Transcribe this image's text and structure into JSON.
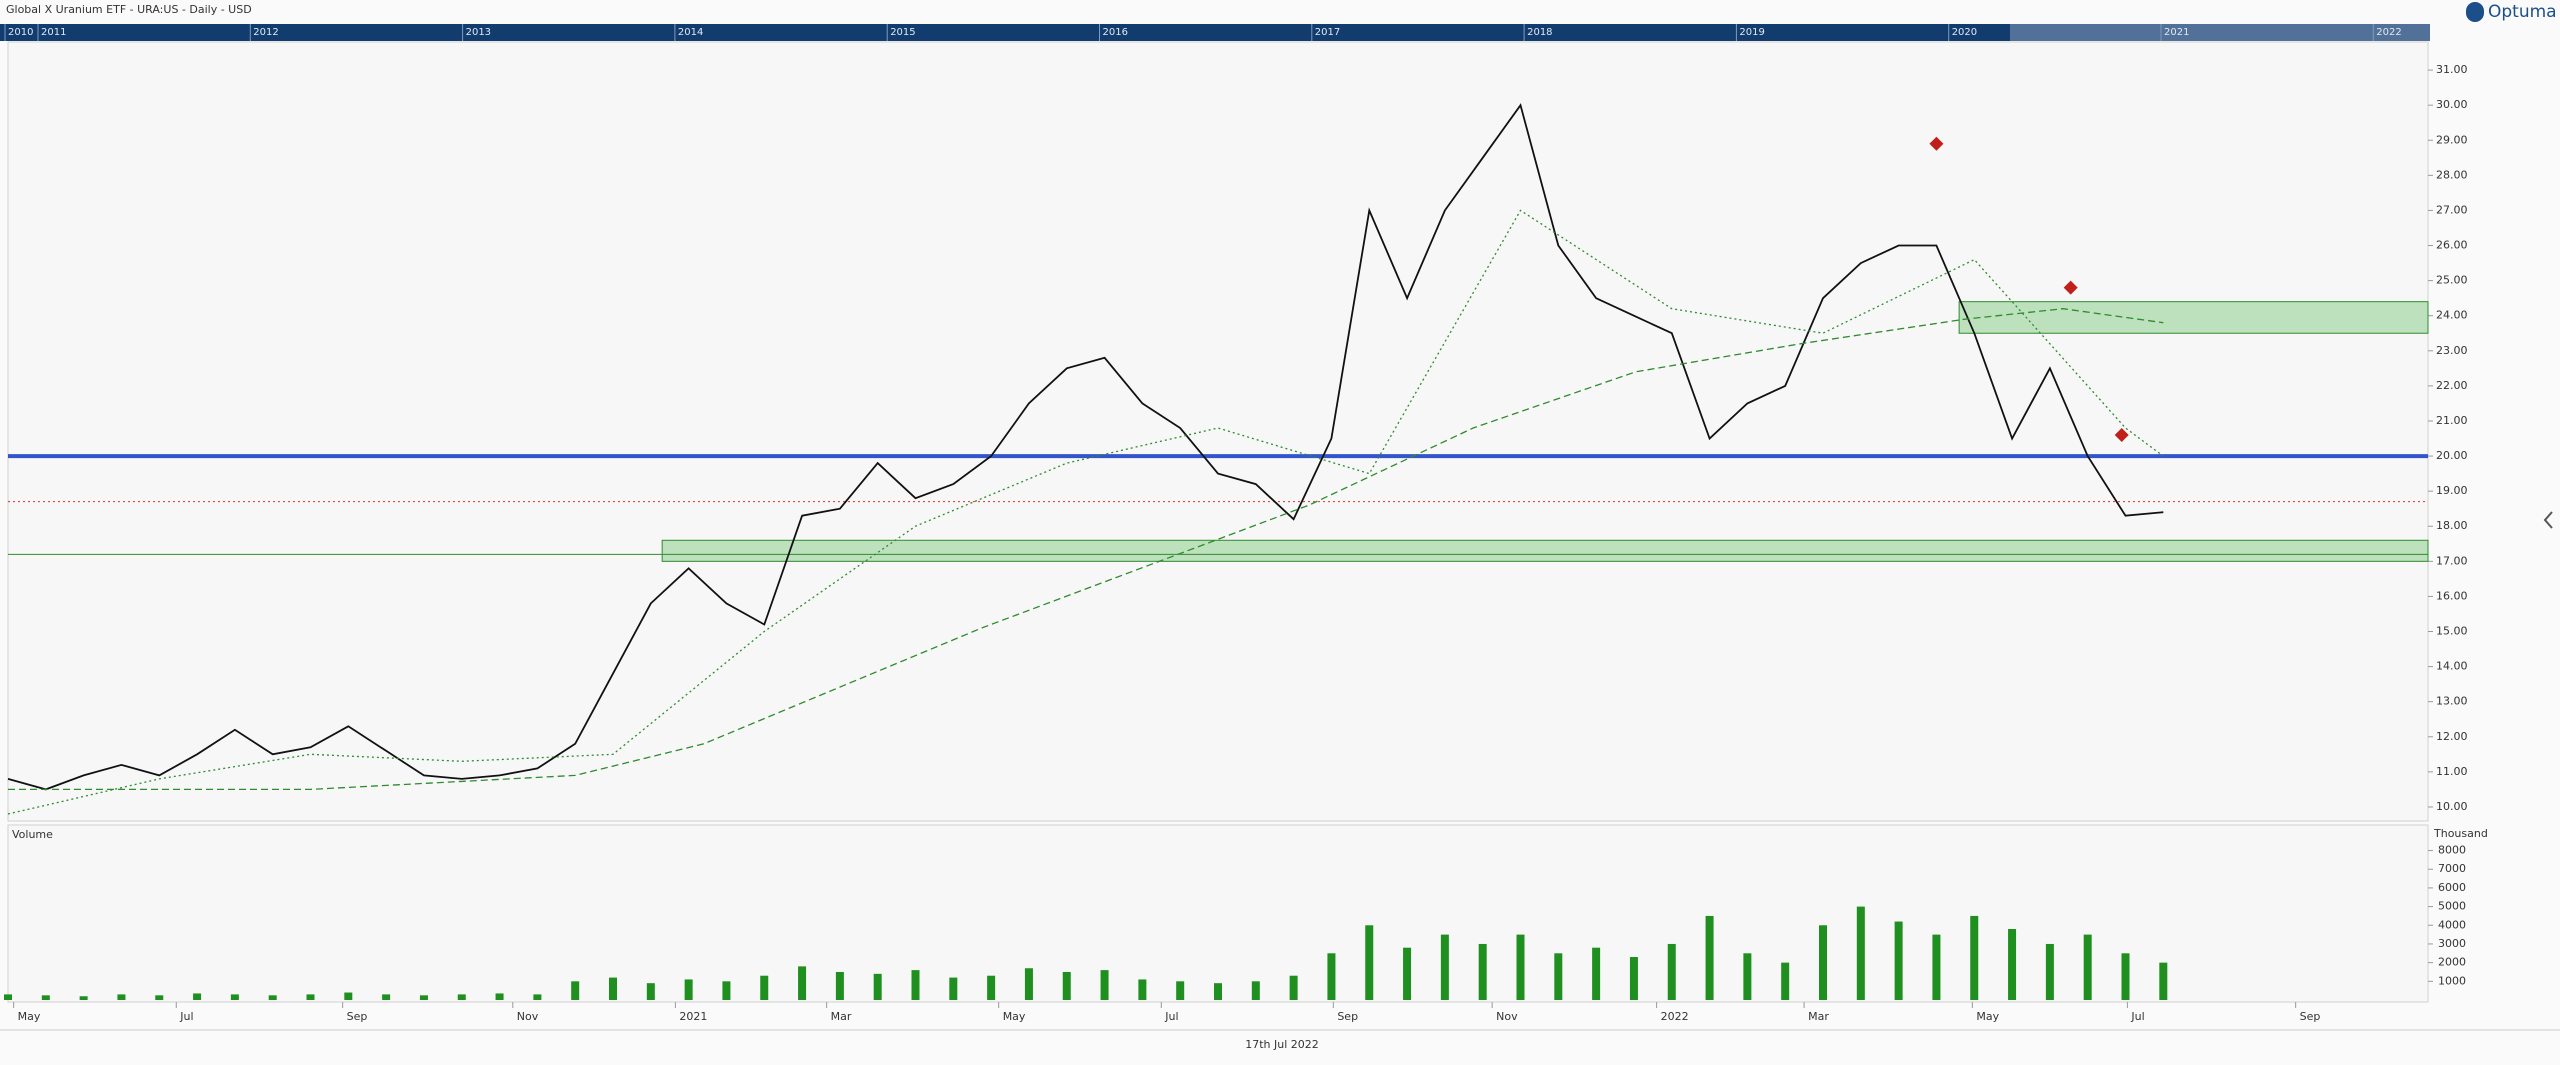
{
  "header": {
    "title": "Global X Uranium ETF - URA:US - Daily - USD",
    "logo": "Optuma",
    "footer_date": "17th Jul 2022"
  },
  "navigator": {
    "years": [
      "2010",
      "2011",
      "2012",
      "2013",
      "2014",
      "2015",
      "2016",
      "2017",
      "2018",
      "2019",
      "2020",
      "2021",
      "2022"
    ]
  },
  "chart_data": [
    {
      "type": "line",
      "xlim": [
        0,
        128
      ],
      "xticks": [
        {
          "value": 0.3,
          "label": "May"
        },
        {
          "value": 8.9,
          "label": "Jul"
        },
        {
          "value": 17.7,
          "label": "Sep"
        },
        {
          "value": 26.7,
          "label": "Nov"
        },
        {
          "value": 35.3,
          "label": "2021"
        },
        {
          "value": 43.3,
          "label": "Mar"
        },
        {
          "value": 52.4,
          "label": "May"
        },
        {
          "value": 61,
          "label": "Jul"
        },
        {
          "value": 70.1,
          "label": "Sep"
        },
        {
          "value": 78.5,
          "label": "Nov"
        },
        {
          "value": 87.2,
          "label": "2022"
        },
        {
          "value": 95,
          "label": "Mar"
        },
        {
          "value": 103.9,
          "label": "May"
        },
        {
          "value": 112.1,
          "label": "Jul"
        },
        {
          "value": 121,
          "label": "Sep"
        }
      ],
      "ylim": [
        9.6,
        31.8
      ],
      "yticks": [
        {
          "value": 10,
          "label": "10.00"
        },
        {
          "value": 11,
          "label": "11.00"
        },
        {
          "value": 12,
          "label": "12.00"
        },
        {
          "value": 13,
          "label": "13.00"
        },
        {
          "value": 14,
          "label": "14.00"
        },
        {
          "value": 15,
          "label": "15.00"
        },
        {
          "value": 16,
          "label": "16.00"
        },
        {
          "value": 17,
          "label": "17.00"
        },
        {
          "value": 18,
          "label": "18.00"
        },
        {
          "value": 19,
          "label": "19.00"
        },
        {
          "value": 20,
          "label": "20.00"
        },
        {
          "value": 21,
          "label": "21.00"
        },
        {
          "value": 22,
          "label": "22.00"
        },
        {
          "value": 23,
          "label": "23.00"
        },
        {
          "value": 24,
          "label": "24.00"
        },
        {
          "value": 25,
          "label": "25.00"
        },
        {
          "value": 26,
          "label": "26.00"
        },
        {
          "value": 27,
          "label": "27.00"
        },
        {
          "value": 28,
          "label": "28.00"
        },
        {
          "value": 29,
          "label": "29.00"
        },
        {
          "value": 30,
          "label": "30.00"
        },
        {
          "value": 31,
          "label": "31.00"
        }
      ],
      "series": [
        {
          "color": "#111111",
          "style": "solid",
          "x": [
            0,
            2,
            4,
            6,
            8,
            10,
            12,
            14,
            16,
            18,
            20,
            22,
            24,
            26,
            28,
            30,
            32,
            34,
            36,
            38,
            40,
            42,
            44,
            46,
            48,
            50,
            52,
            54,
            56,
            58,
            60,
            62,
            64,
            66,
            68,
            70,
            72,
            74,
            76,
            78,
            80,
            82,
            84,
            86,
            88,
            90,
            92,
            94,
            96,
            98,
            100,
            102,
            104,
            106,
            108,
            110,
            112,
            114
          ],
          "values": [
            10.8,
            10.5,
            10.9,
            11.2,
            10.9,
            11.5,
            12.2,
            11.5,
            11.7,
            12.3,
            11.6,
            10.9,
            10.8,
            10.9,
            11.1,
            11.8,
            13.8,
            15.8,
            16.8,
            15.8,
            15.2,
            18.3,
            18.5,
            19.8,
            18.8,
            19.2,
            20.0,
            21.5,
            22.5,
            22.8,
            21.5,
            20.8,
            19.5,
            19.2,
            18.2,
            20.5,
            27.0,
            24.5,
            27.0,
            28.5,
            30.0,
            26.0,
            24.5,
            24.0,
            23.5,
            20.5,
            21.5,
            22.0,
            24.5,
            25.5,
            26.0,
            26.0,
            23.5,
            20.5,
            22.5,
            20.0,
            18.3,
            18.4
          ]
        },
        {
          "color": "#2e8b2e",
          "style": "dotted",
          "x": [
            0,
            8,
            16,
            24,
            32,
            40,
            48,
            56,
            64,
            72,
            80,
            88,
            96,
            104,
            112,
            114
          ],
          "values": [
            9.8,
            10.8,
            11.5,
            11.3,
            11.5,
            15.0,
            18.0,
            19.8,
            20.8,
            19.5,
            27.0,
            24.2,
            23.5,
            25.6,
            20.8,
            20.0
          ]
        },
        {
          "color": "#2e8b2e",
          "style": "dashed",
          "x": [
            0,
            16,
            30,
            36.8,
            51.5,
            68.8,
            77.5,
            86.1,
            94.8,
            103.5,
            108.7,
            114
          ],
          "values": [
            10.5,
            10.5,
            10.9,
            11.8,
            15.1,
            18.6,
            20.8,
            22.4,
            23.2,
            23.9,
            24.2,
            23.8
          ]
        }
      ],
      "hlines": [
        {
          "value": 20.0,
          "color": "#3355cc",
          "width": 4,
          "style": "solid"
        },
        {
          "value": 18.7,
          "color": "#e03030",
          "width": 1,
          "style": "dotted"
        },
        {
          "value": 17.2,
          "color": "#2e8b2e",
          "width": 1,
          "style": "solid"
        }
      ],
      "zones": [
        {
          "x": [
            34.6,
            128
          ],
          "y": [
            17.0,
            17.6
          ]
        },
        {
          "x": [
            103.2,
            128
          ],
          "y": [
            23.5,
            24.4
          ]
        }
      ],
      "markers": {
        "color": "#c0201a",
        "x": [
          102,
          109.1,
          111.8
        ],
        "values": [
          28.9,
          24.8,
          20.6
        ]
      }
    },
    {
      "type": "bar",
      "label": "Volume",
      "unit_label": "Thousand",
      "color": "#1f8f1f",
      "ylim": [
        0,
        9100
      ],
      "yticks": [
        1000,
        2000,
        3000,
        4000,
        5000,
        6000,
        7000,
        8000
      ],
      "x": [
        0,
        2,
        4,
        6,
        8,
        10,
        12,
        14,
        16,
        18,
        20,
        22,
        24,
        26,
        28,
        30,
        32,
        34,
        36,
        38,
        40,
        42,
        44,
        46,
        48,
        50,
        52,
        54,
        56,
        58,
        60,
        62,
        64,
        66,
        68,
        70,
        72,
        74,
        76,
        78,
        80,
        82,
        84,
        86,
        88,
        90,
        92,
        94,
        96,
        98,
        100,
        102,
        104,
        106,
        108,
        110,
        112,
        114
      ],
      "values": [
        300,
        250,
        200,
        300,
        250,
        350,
        300,
        250,
        300,
        400,
        300,
        250,
        300,
        350,
        300,
        1000,
        1200,
        900,
        1100,
        1000,
        1300,
        1800,
        1500,
        1400,
        1600,
        1200,
        1300,
        1700,
        1500,
        1600,
        1100,
        1000,
        900,
        1000,
        1300,
        2500,
        4000,
        2800,
        3500,
        3000,
        3500,
        2500,
        2800,
        2300,
        3000,
        4500,
        2500,
        2000,
        4000,
        5000,
        4200,
        3500,
        4500,
        3800,
        3000,
        3500,
        2500,
        2000
      ]
    }
  ]
}
